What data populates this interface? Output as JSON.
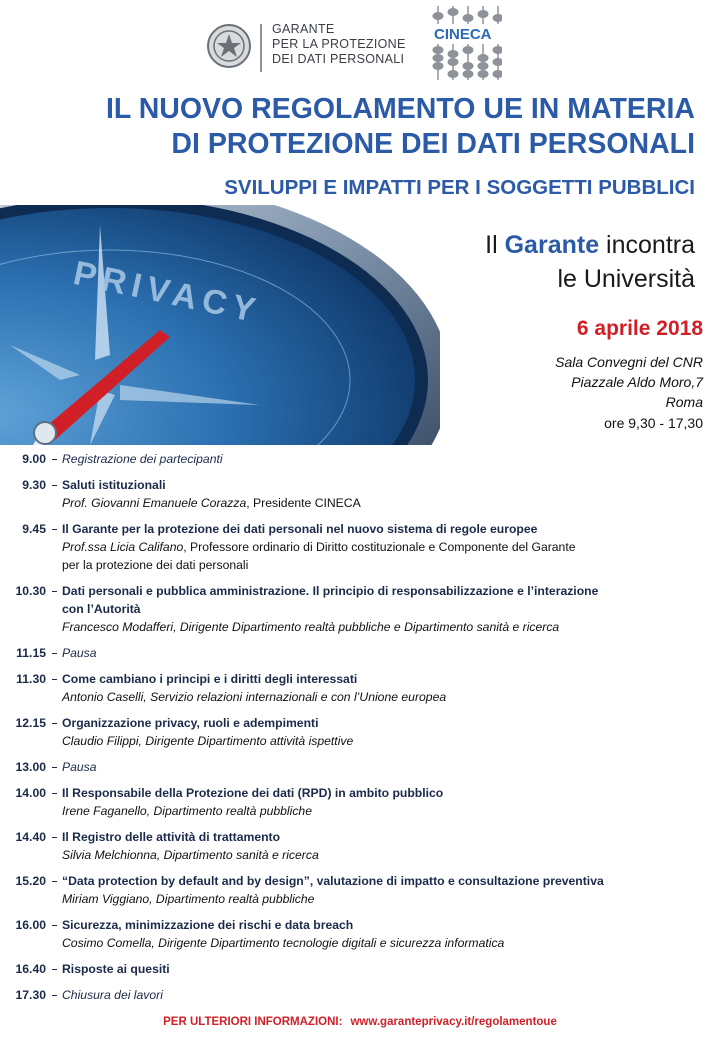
{
  "header": {
    "garante_logo": [
      "GARANTE",
      "PER LA PROTEZIONE",
      "DEI DATI PERSONALI"
    ],
    "cineca_logo": "CINECA"
  },
  "title": {
    "lines": [
      "IL NUOVO REGOLAMENTO UE IN MATERIA",
      "DI PROTEZIONE DEI DATI PERSONALI"
    ],
    "subtitle": "SVILUPPI E IMPATTI PER I SOGGETTI PUBBLICI"
  },
  "image": {
    "label": "PRIVACY"
  },
  "invite": {
    "pre": "Il",
    "highlight": "Garante",
    "post": "incontra",
    "line2": "le Università"
  },
  "event": {
    "date": "6 aprile 2018",
    "venue": [
      "Sala Convegni del CNR",
      "Piazzale Aldo Moro,7",
      "Roma"
    ],
    "hours": "ore 9,30 - 17,30"
  },
  "program": [
    {
      "time": "9.00",
      "title": [
        "Registrazione dei partecipanti"
      ],
      "style": "italic"
    },
    {
      "time": "9.30",
      "title": [
        "Saluti istituzionali"
      ],
      "style": "bold",
      "speaker": "Prof. Giovanni Emanuele Corazza",
      "speaker_note": [
        ", Presidente CINECA"
      ]
    },
    {
      "time": "9.45",
      "title": [
        "Il Garante per la protezione dei dati personali nel nuovo sistema di regole europee"
      ],
      "style": "bold",
      "speaker": "Prof.ssa Licia Califano",
      "speaker_note": [
        ", Professore ordinario di Diritto costituzionale e Componente del Garante",
        "per la protezione dei dati personali"
      ]
    },
    {
      "time": "10.30",
      "title": [
        "Dati personali e pubblica amministrazione. Il principio di responsabilizzazione e l’interazione",
        "con l’Autorità"
      ],
      "style": "bold",
      "speaker": "Francesco Modafferi, Dirigente Dipartimento realtà pubbliche e Dipartimento sanità e ricerca"
    },
    {
      "time": "11.15",
      "title": [
        "Pausa"
      ],
      "style": "italic"
    },
    {
      "time": "11.30",
      "title": [
        "Come cambiano i principi e i diritti degli interessati"
      ],
      "style": "bold",
      "speaker": "Antonio Caselli, Servizio relazioni internazionali e con l’Unione europea"
    },
    {
      "time": "12.15",
      "title": [
        "Organizzazione privacy, ruoli e adempimenti"
      ],
      "style": "bold",
      "speaker": "Claudio Filippi, Dirigente Dipartimento attività ispettive"
    },
    {
      "time": "13.00",
      "title": [
        "Pausa"
      ],
      "style": "italic"
    },
    {
      "time": "14.00",
      "title": [
        "Il Responsabile della Protezione dei dati (RPD) in ambito pubblico"
      ],
      "style": "bold",
      "speaker": "Irene Faganello, Dipartimento realtà pubbliche"
    },
    {
      "time": "14.40",
      "title": [
        "Il Registro delle attività di trattamento"
      ],
      "style": "bold",
      "speaker": "Silvia Melchionna, Dipartimento sanità  e ricerca"
    },
    {
      "time": "15.20",
      "title": [
        "“Data protection by default and by design”, valutazione di impatto e consultazione preventiva"
      ],
      "style": "bold",
      "speaker": "Miriam Viggiano, Dipartimento realtà pubbliche"
    },
    {
      "time": "16.00",
      "title": [
        "Sicurezza, minimizzazione dei rischi e data breach"
      ],
      "style": "bold",
      "speaker": "Cosimo Comella, Dirigente Dipartimento tecnologie digitali e  sicurezza informatica"
    },
    {
      "time": "16.40",
      "title": [
        "Risposte ai quesiti"
      ],
      "style": "bold"
    },
    {
      "time": "17.30",
      "title": [
        "Chiusura dei lavori"
      ],
      "style": "italic"
    }
  ],
  "footer": {
    "label": "PER ULTERIORI  INFORMAZIONI:",
    "link": "www.garanteprivacy.it/regolamentoue"
  }
}
